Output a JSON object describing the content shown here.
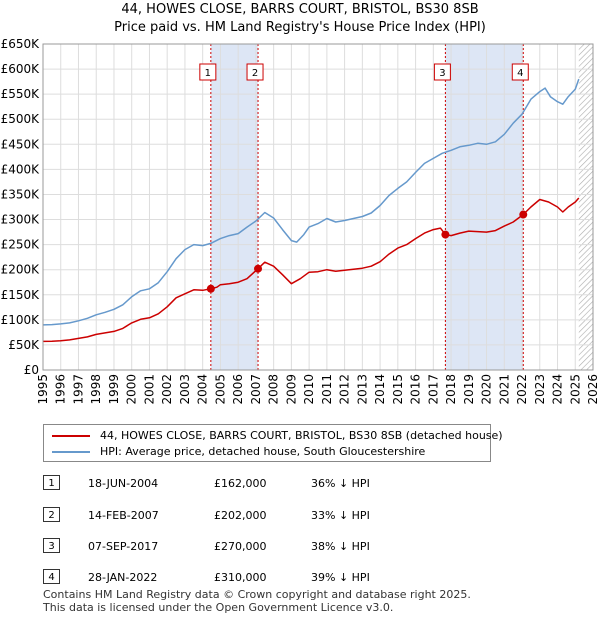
{
  "title_line1": "44, HOWES CLOSE, BARRS COURT, BRISTOL, BS30 8SB",
  "title_line2": "Price paid vs. HM Land Registry's House Price Index (HPI)",
  "colors": {
    "property": "#cc0000",
    "hpi": "#6699cc",
    "shade": "#dde6f5",
    "grid": "#dddddd",
    "vline": "#cc0000",
    "hatch": "#aaaaaa"
  },
  "chart_data": {
    "type": "line",
    "xlim": [
      1995,
      2026
    ],
    "ylim": [
      0,
      650000
    ],
    "x_ticks": [
      1995,
      1996,
      1997,
      1998,
      1999,
      2000,
      2001,
      2002,
      2003,
      2004,
      2005,
      2006,
      2007,
      2008,
      2009,
      2010,
      2011,
      2012,
      2013,
      2014,
      2015,
      2016,
      2017,
      2018,
      2019,
      2020,
      2021,
      2022,
      2023,
      2024,
      2025,
      2026
    ],
    "y_ticks": [
      0,
      50000,
      100000,
      150000,
      200000,
      250000,
      300000,
      350000,
      400000,
      450000,
      500000,
      550000,
      600000,
      650000
    ],
    "y_tick_labels": [
      "£0",
      "£50K",
      "£100K",
      "£150K",
      "£200K",
      "£250K",
      "£300K",
      "£350K",
      "£400K",
      "£450K",
      "£500K",
      "£550K",
      "£600K",
      "£650K"
    ],
    "shaded_periods": [
      [
        2004.46,
        2007.12
      ],
      [
        2017.68,
        2022.07
      ]
    ],
    "data_end_year": 2025.2,
    "series": [
      {
        "name": "44, HOWES CLOSE, BARRS COURT, BRISTOL, BS30 8SB (detached house)",
        "x": [
          1995,
          1995.5,
          1996,
          1996.5,
          1997,
          1997.5,
          1998,
          1998.5,
          1999,
          1999.5,
          2000,
          2000.5,
          2001,
          2001.5,
          2002,
          2002.5,
          2003,
          2003.5,
          2004,
          2004.46,
          2004.8,
          2005,
          2005.5,
          2006,
          2006.5,
          2007.12,
          2007.5,
          2008,
          2008.5,
          2009,
          2009.5,
          2010,
          2010.5,
          2011,
          2011.5,
          2012,
          2012.5,
          2013,
          2013.5,
          2014,
          2014.5,
          2015,
          2015.5,
          2016,
          2016.5,
          2017,
          2017.4,
          2017.68,
          2018,
          2018.5,
          2019,
          2019.5,
          2020,
          2020.5,
          2021,
          2021.5,
          2022.07,
          2022.5,
          2023,
          2023.5,
          2024,
          2024.3,
          2024.6,
          2025,
          2025.2
        ],
        "y": [
          57000,
          57500,
          58500,
          60000,
          63000,
          66000,
          71000,
          74000,
          77000,
          83000,
          94000,
          101000,
          104000,
          112000,
          126000,
          144000,
          152000,
          160000,
          159000,
          162000,
          165000,
          170000,
          172000,
          175000,
          182000,
          202000,
          215000,
          207000,
          190000,
          172000,
          182000,
          195000,
          196000,
          200000,
          197000,
          199000,
          201000,
          203000,
          207000,
          216000,
          231000,
          243000,
          250000,
          262000,
          273000,
          280000,
          283000,
          270000,
          268000,
          273000,
          277000,
          276000,
          275000,
          278000,
          287000,
          295000,
          310000,
          325000,
          340000,
          335000,
          325000,
          315000,
          325000,
          335000,
          343000
        ]
      },
      {
        "name": "HPI: Average price, detached house, South Gloucestershire",
        "x": [
          1995,
          1995.5,
          1996,
          1996.5,
          1997,
          1997.5,
          1998,
          1998.5,
          1999,
          1999.5,
          2000,
          2000.5,
          2001,
          2001.5,
          2002,
          2002.5,
          2003,
          2003.5,
          2004,
          2004.5,
          2005,
          2005.5,
          2006,
          2006.5,
          2007,
          2007.5,
          2008,
          2008.5,
          2009,
          2009.3,
          2009.7,
          2010,
          2010.5,
          2011,
          2011.5,
          2012,
          2012.5,
          2013,
          2013.5,
          2014,
          2014.5,
          2015,
          2015.5,
          2016,
          2016.5,
          2017,
          2017.5,
          2018,
          2018.5,
          2019,
          2019.5,
          2020,
          2020.5,
          2021,
          2021.5,
          2022,
          2022.5,
          2023,
          2023.3,
          2023.6,
          2024,
          2024.3,
          2024.6,
          2025,
          2025.2
        ],
        "y": [
          90000,
          90500,
          92000,
          94000,
          98000,
          103000,
          110000,
          115000,
          121000,
          130000,
          146000,
          158000,
          162000,
          174000,
          196000,
          222000,
          240000,
          250000,
          248000,
          253000,
          262000,
          268000,
          272000,
          285000,
          297000,
          314000,
          303000,
          280000,
          258000,
          255000,
          270000,
          285000,
          292000,
          302000,
          295000,
          298000,
          302000,
          306000,
          313000,
          328000,
          348000,
          362000,
          375000,
          394000,
          412000,
          422000,
          432000,
          438000,
          445000,
          448000,
          452000,
          450000,
          455000,
          470000,
          492000,
          510000,
          540000,
          555000,
          562000,
          545000,
          535000,
          530000,
          545000,
          560000,
          580000
        ]
      }
    ],
    "sale_markers": [
      {
        "label": "1",
        "x": 2004.46,
        "y": 162000
      },
      {
        "label": "2",
        "x": 2007.12,
        "y": 202000
      },
      {
        "label": "3",
        "x": 2017.68,
        "y": 270000
      },
      {
        "label": "4",
        "x": 2022.07,
        "y": 310000
      }
    ]
  },
  "legend": [
    "44, HOWES CLOSE, BARRS COURT, BRISTOL, BS30 8SB (detached house)",
    "HPI: Average price, detached house, South Gloucestershire"
  ],
  "sales": [
    {
      "num": "1",
      "date": "18-JUN-2004",
      "price": "£162,000",
      "hpi": "36% ↓ HPI"
    },
    {
      "num": "2",
      "date": "14-FEB-2007",
      "price": "£202,000",
      "hpi": "33% ↓ HPI"
    },
    {
      "num": "3",
      "date": "07-SEP-2017",
      "price": "£270,000",
      "hpi": "38% ↓ HPI"
    },
    {
      "num": "4",
      "date": "28-JAN-2022",
      "price": "£310,000",
      "hpi": "39% ↓ HPI"
    }
  ],
  "footer_line1": "Contains HM Land Registry data © Crown copyright and database right 2025.",
  "footer_line2": "This data is licensed under the Open Government Licence v3.0."
}
